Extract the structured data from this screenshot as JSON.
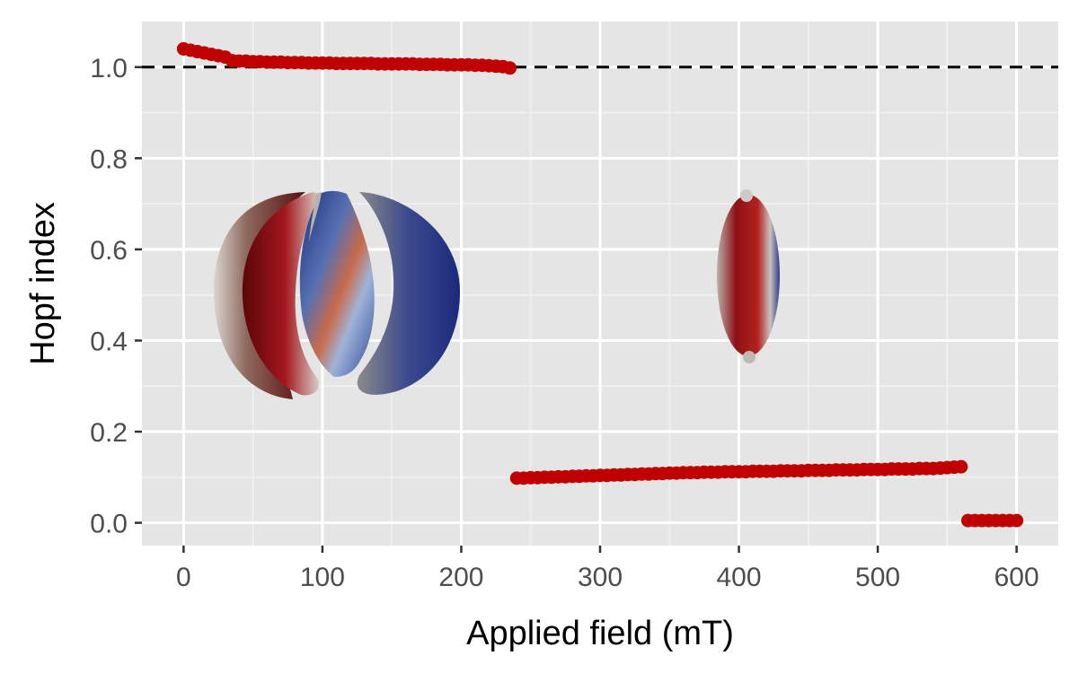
{
  "chart_data": {
    "type": "scatter",
    "xlabel": "Applied field (mT)",
    "ylabel": "Hopf index",
    "xlim": [
      -30,
      630
    ],
    "ylim": [
      -0.05,
      1.1
    ],
    "x_ticks": [
      0,
      100,
      200,
      300,
      400,
      500,
      600
    ],
    "x_tick_labels": [
      "0",
      "100",
      "200",
      "300",
      "400",
      "500",
      "600"
    ],
    "y_ticks": [
      0.0,
      0.2,
      0.4,
      0.6,
      0.8,
      1.0
    ],
    "y_tick_labels": [
      "0.0",
      "0.2",
      "0.4",
      "0.6",
      "0.8",
      "1.0"
    ],
    "reference_line": {
      "y": 1.0,
      "style": "dashed",
      "color": "#000000"
    },
    "series": [
      {
        "name": "Hopf index",
        "color": "#c00000",
        "x": [
          0,
          5,
          10,
          15,
          20,
          25,
          30,
          35,
          40,
          45,
          50,
          55,
          60,
          65,
          70,
          75,
          80,
          85,
          90,
          95,
          100,
          105,
          110,
          115,
          120,
          125,
          130,
          135,
          140,
          145,
          150,
          155,
          160,
          165,
          170,
          175,
          180,
          185,
          190,
          195,
          200,
          205,
          210,
          215,
          220,
          225,
          230,
          235,
          240,
          245,
          250,
          255,
          260,
          265,
          270,
          275,
          280,
          285,
          290,
          295,
          300,
          305,
          310,
          315,
          320,
          325,
          330,
          335,
          340,
          345,
          350,
          355,
          360,
          365,
          370,
          375,
          380,
          385,
          390,
          395,
          400,
          405,
          410,
          415,
          420,
          425,
          430,
          435,
          440,
          445,
          450,
          455,
          460,
          465,
          470,
          475,
          480,
          485,
          490,
          495,
          500,
          505,
          510,
          515,
          520,
          525,
          530,
          535,
          540,
          545,
          550,
          555,
          560,
          565,
          570,
          575,
          580,
          585,
          590,
          595,
          600
        ],
        "y": [
          1.04,
          1.037,
          1.034,
          1.031,
          1.028,
          1.025,
          1.022,
          1.014,
          1.013,
          1.013,
          1.012,
          1.012,
          1.011,
          1.011,
          1.011,
          1.01,
          1.01,
          1.01,
          1.009,
          1.009,
          1.009,
          1.009,
          1.008,
          1.008,
          1.008,
          1.008,
          1.008,
          1.008,
          1.007,
          1.007,
          1.007,
          1.007,
          1.007,
          1.007,
          1.006,
          1.006,
          1.006,
          1.006,
          1.005,
          1.005,
          1.005,
          1.005,
          1.004,
          1.004,
          1.003,
          1.002,
          1.001,
          0.998,
          0.098,
          0.098,
          0.099,
          0.099,
          0.1,
          0.1,
          0.101,
          0.101,
          0.102,
          0.102,
          0.103,
          0.103,
          0.104,
          0.104,
          0.105,
          0.105,
          0.106,
          0.106,
          0.107,
          0.107,
          0.108,
          0.108,
          0.109,
          0.109,
          0.11,
          0.11,
          0.11,
          0.111,
          0.111,
          0.111,
          0.112,
          0.112,
          0.112,
          0.112,
          0.113,
          0.113,
          0.113,
          0.113,
          0.114,
          0.114,
          0.114,
          0.114,
          0.115,
          0.115,
          0.115,
          0.115,
          0.116,
          0.116,
          0.116,
          0.116,
          0.117,
          0.117,
          0.117,
          0.117,
          0.118,
          0.118,
          0.118,
          0.118,
          0.119,
          0.119,
          0.119,
          0.12,
          0.121,
          0.122,
          0.123,
          0.005,
          0.005,
          0.005,
          0.005,
          0.005,
          0.005,
          0.005,
          0.005
        ]
      }
    ],
    "insets": [
      {
        "name": "hopfion-torus",
        "center_x": 100,
        "center_y": 0.52,
        "description_colors": [
          "#8b0000",
          "#2b3a8f",
          "#a0a0a0"
        ]
      },
      {
        "name": "elongated-hopfion",
        "center_x": 405,
        "center_y": 0.54,
        "description_colors": [
          "#8b0000",
          "#2b3a8f",
          "#a0a0a0"
        ]
      }
    ]
  }
}
